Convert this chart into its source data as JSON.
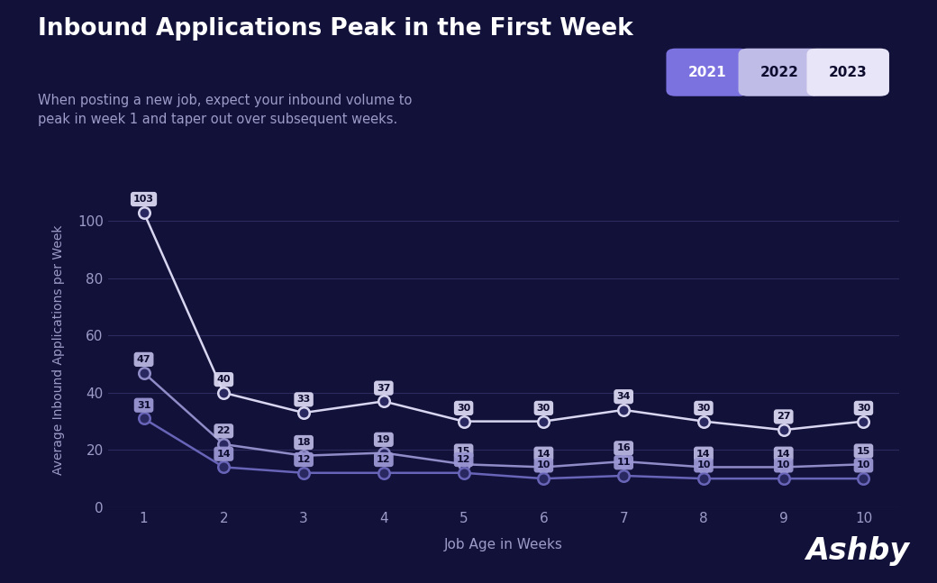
{
  "title": "Inbound Applications Peak in the First Week",
  "subtitle": "When posting a new job, expect your inbound volume to\npeak in week 1 and taper out over subsequent weeks.",
  "xlabel": "Job Age in Weeks",
  "ylabel": "Average Inbound Applications per Week",
  "bg_color": "#12113a",
  "grid_color": "#2d2b5e",
  "text_color": "#ffffff",
  "subtitle_color": "#9d9bc8",
  "tick_color": "#9d9bc8",
  "weeks": [
    1,
    2,
    3,
    4,
    5,
    6,
    7,
    8,
    9,
    10
  ],
  "series": [
    {
      "label": "2021",
      "values": [
        103,
        40,
        33,
        37,
        30,
        30,
        34,
        30,
        27,
        30
      ],
      "line_color": "#d8d6f0",
      "marker_face": "#2a2860",
      "label_bg": "#d8d6f0",
      "label_text": "#0d0c2e",
      "line_width": 1.8,
      "legend_bg": "#7b72e0"
    },
    {
      "label": "2022",
      "values": [
        47,
        22,
        18,
        19,
        15,
        14,
        16,
        14,
        14,
        15
      ],
      "line_color": "#8f8cc8",
      "marker_face": "#2a2860",
      "label_bg": "#b8b5e0",
      "label_text": "#0d0c2e",
      "line_width": 1.8,
      "legend_bg": "#c0bce8"
    },
    {
      "label": "2023",
      "values": [
        31,
        14,
        12,
        12,
        12,
        10,
        11,
        10,
        10,
        10
      ],
      "line_color": "#6864b8",
      "marker_face": "#2a2860",
      "label_bg": "#9a97d4",
      "label_text": "#0d0c2e",
      "line_width": 1.8,
      "legend_bg": "#e8e5f8"
    }
  ],
  "ylim": [
    0,
    110
  ],
  "yticks": [
    0,
    20,
    40,
    60,
    80,
    100
  ],
  "legend_labels": [
    "2021",
    "2022",
    "2023"
  ],
  "legend_bgs": [
    "#7b72e0",
    "#c0bce8",
    "#e8e5f8"
  ],
  "legend_text_colors": [
    "#ffffff",
    "#0d0c2e",
    "#0d0c2e"
  ],
  "ashby_text": "Ashby"
}
